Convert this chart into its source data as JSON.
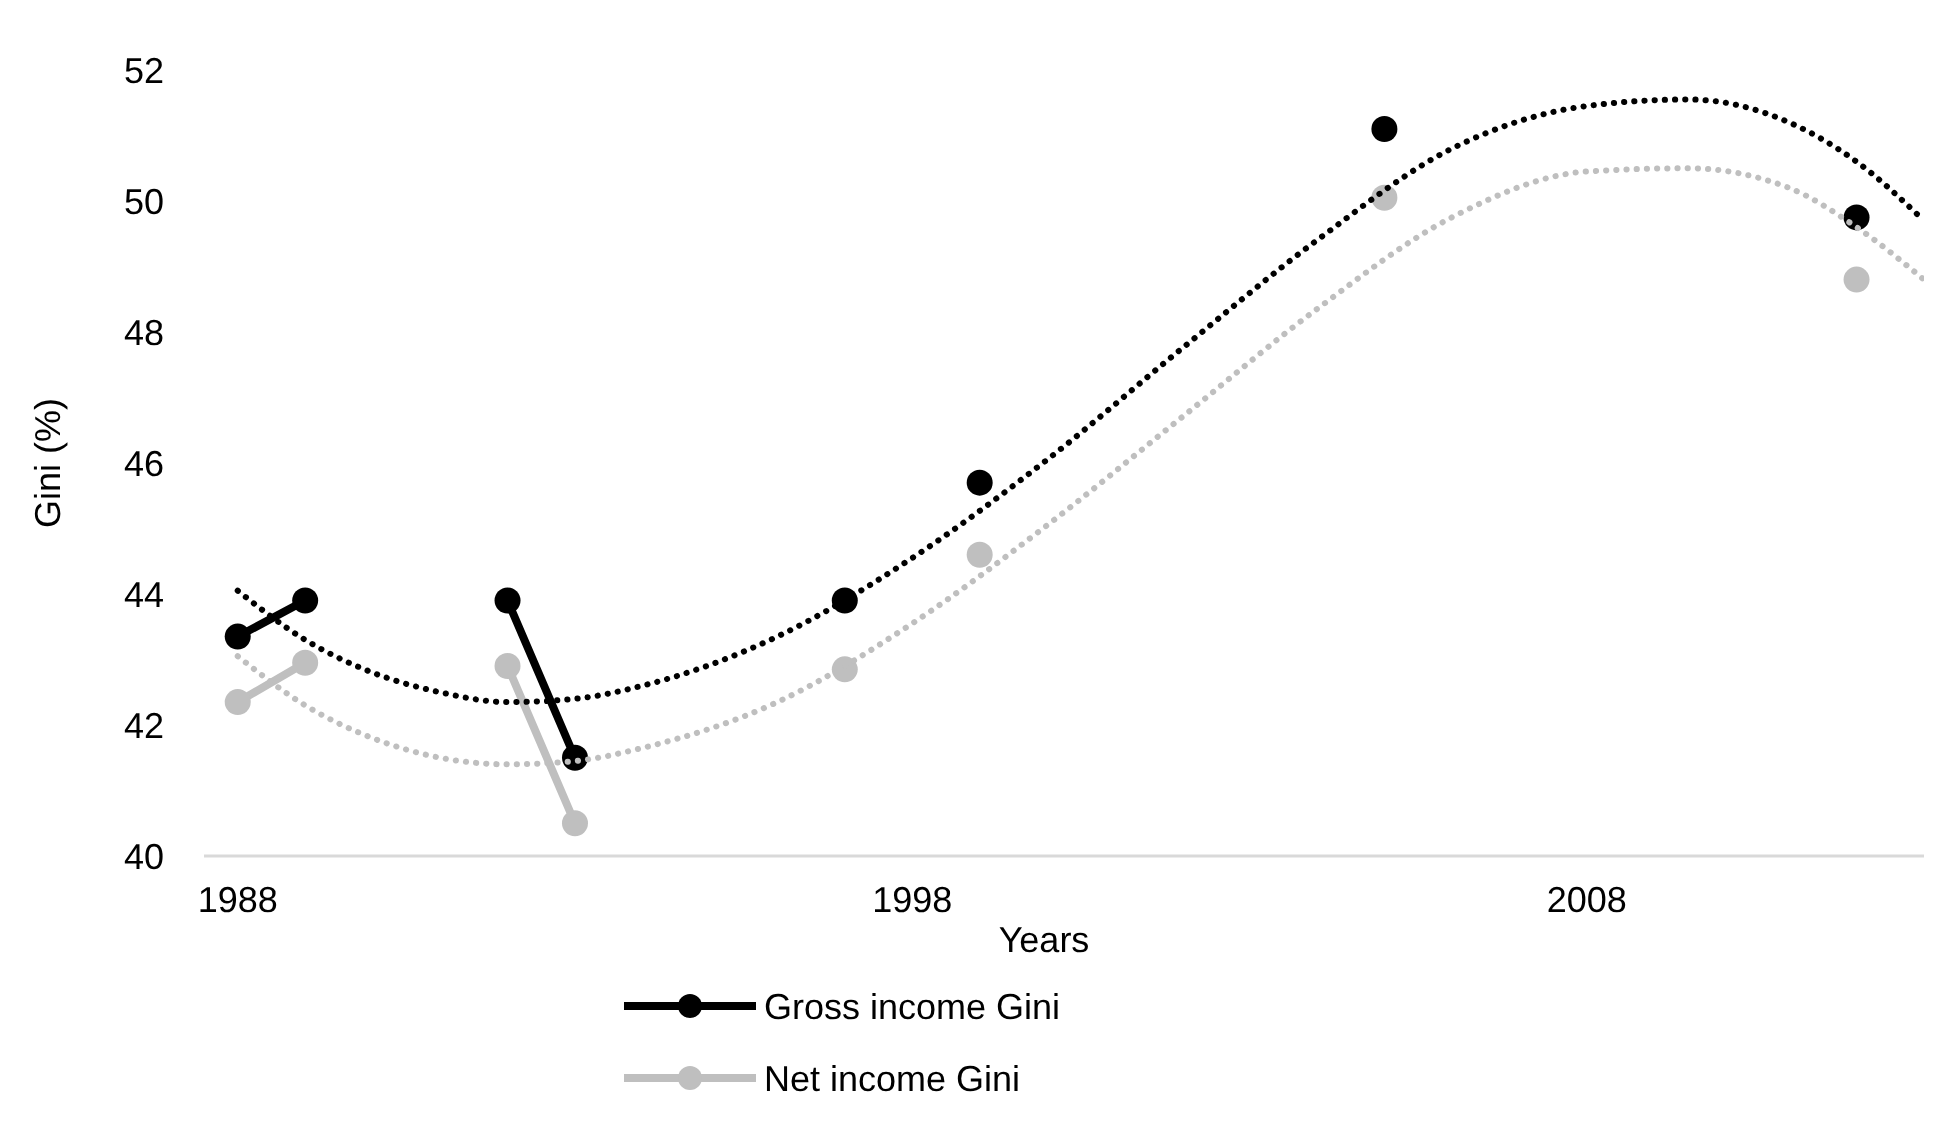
{
  "chart_data": {
    "type": "line",
    "xlabel": "Years",
    "ylabel": "Gini (%)",
    "xlim": [
      1987.5,
      2013
    ],
    "xticks": [
      1988,
      1998,
      2008
    ],
    "ylim": [
      40,
      52
    ],
    "yticks": [
      40,
      42,
      44,
      46,
      48,
      50,
      52
    ],
    "grid": false,
    "legend": "bottom",
    "marker": "circle",
    "line_style": "solid",
    "x": [
      1988,
      1989,
      1990,
      1992,
      1993,
      1995,
      1997,
      1998,
      1999,
      2002,
      2005,
      2009,
      2012
    ],
    "series": [
      {
        "name": "Gross income Gini",
        "color": "#000000",
        "values": [
          43.35,
          43.9,
          null,
          43.9,
          41.5,
          null,
          43.9,
          null,
          45.7,
          null,
          51.1,
          null,
          49.75
        ]
      },
      {
        "name": "Net income Gini",
        "color": "#bfbfbf",
        "values": [
          42.35,
          42.95,
          null,
          42.9,
          40.5,
          null,
          42.85,
          null,
          44.6,
          null,
          50.05,
          null,
          48.8
        ]
      },
      {
        "type": "line",
        "color": "#000000",
        "line_style": "dotted",
        "marker": "none",
        "x": [
          1988,
          1989,
          1990,
          1991,
          1992,
          1993,
          1994,
          1996,
          1998,
          2000,
          2002,
          2004,
          2006,
          2008,
          2009.5,
          2011,
          2012,
          2013
        ],
        "values": [
          44.05,
          43.3,
          42.8,
          42.5,
          42.35,
          42.4,
          42.6,
          43.35,
          44.55,
          46.05,
          47.75,
          49.4,
          50.8,
          51.45,
          51.55,
          51.2,
          50.6,
          49.7
        ]
      },
      {
        "type": "line",
        "color": "#bfbfbf",
        "line_style": "dotted",
        "marker": "none",
        "x": [
          1988,
          1989,
          1990,
          1991,
          1992,
          1993,
          1994,
          1996,
          1998,
          2000,
          2002,
          2004,
          2006,
          2008,
          2009.5,
          2011,
          2012,
          2013
        ],
        "values": [
          43.05,
          42.3,
          41.8,
          41.5,
          41.4,
          41.45,
          41.65,
          42.35,
          43.55,
          45.05,
          46.7,
          48.35,
          49.75,
          50.45,
          50.5,
          50.2,
          49.6,
          48.8
        ]
      }
    ]
  }
}
